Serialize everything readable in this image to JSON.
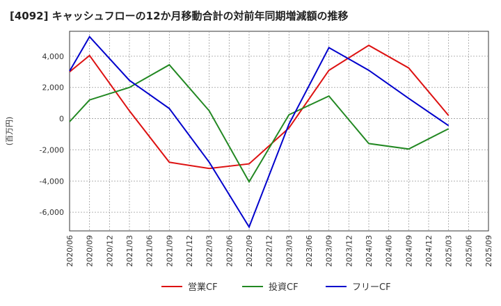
{
  "chart_data": {
    "type": "line",
    "title": "[4092]  キャッシュフローの12か月移動合計の対前年同期増減額の推移",
    "ylabel": "(百万円)",
    "xlabel": "",
    "ylim": [
      -7200,
      5600
    ],
    "yticks": [
      4000,
      2000,
      0,
      -2000,
      -4000,
      -6000
    ],
    "ytick_labels": [
      "4,000",
      "2,000",
      "0",
      "-2,000",
      "-4,000",
      "-6,000"
    ],
    "x_categories": [
      "2020/06",
      "2020/09",
      "2020/12",
      "2021/03",
      "2021/06",
      "2021/09",
      "2021/12",
      "2022/03",
      "2022/06",
      "2022/09",
      "2022/12",
      "2023/03",
      "2023/06",
      "2023/09",
      "2023/12",
      "2024/03",
      "2024/06",
      "2024/09",
      "2024/12",
      "2025/03",
      "2025/06",
      "2025/09"
    ],
    "grid": true,
    "legend_position": "bottom",
    "series": [
      {
        "name": "営業CF",
        "color": "#dd1111",
        "x": [
          "2020/06",
          "2020/09",
          "2021/03",
          "2021/09",
          "2022/03",
          "2022/09",
          "2023/03",
          "2023/09",
          "2024/03",
          "2024/09",
          "2025/03"
        ],
        "values": [
          3000,
          4050,
          500,
          -2800,
          -3200,
          -2900,
          -600,
          3100,
          4700,
          3250,
          200
        ]
      },
      {
        "name": "投資CF",
        "color": "#228822",
        "x": [
          "2020/06",
          "2020/09",
          "2021/03",
          "2021/09",
          "2022/03",
          "2022/09",
          "2023/03",
          "2023/09",
          "2024/03",
          "2024/09",
          "2025/03"
        ],
        "values": [
          -200,
          1200,
          2000,
          3450,
          500,
          -4050,
          250,
          1450,
          -1600,
          -1950,
          -650
        ]
      },
      {
        "name": "フリーCF",
        "color": "#0000cc",
        "x": [
          "2020/06",
          "2020/09",
          "2021/03",
          "2021/09",
          "2022/03",
          "2022/09",
          "2023/03",
          "2023/09",
          "2024/03",
          "2024/09",
          "2025/03"
        ],
        "values": [
          3050,
          5250,
          2450,
          650,
          -2800,
          -6950,
          -350,
          4550,
          3100,
          1300,
          -450
        ]
      }
    ]
  }
}
